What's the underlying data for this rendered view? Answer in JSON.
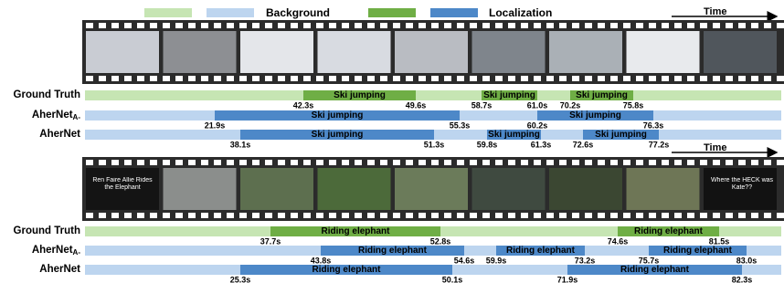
{
  "legend": {
    "background": "Background",
    "localization": "Localization"
  },
  "panels": [
    {
      "time_label": "Time",
      "frame_texts": [],
      "rows": [
        {
          "name": "Ground Truth",
          "sub": null,
          "segments": [
            {
              "label": "Ski jumping",
              "start": "42.3s",
              "end": "49.6s"
            },
            {
              "label": "Ski jumping",
              "start": "58.7s",
              "end": "61.0s"
            },
            {
              "label": "Ski jumping",
              "start": "70.2s",
              "end": "75.8s"
            }
          ]
        },
        {
          "name": "AherNet",
          "sub": "A-",
          "segments": [
            {
              "label": "Ski jumping",
              "start": "21.9s",
              "end": "55.3s"
            },
            {
              "label": "Ski jumping",
              "start": "60.2s",
              "end": "76.3s"
            }
          ]
        },
        {
          "name": "AherNet",
          "sub": null,
          "segments": [
            {
              "label": "Ski jumping",
              "start": "38.1s",
              "end": "51.3s"
            },
            {
              "label": "Ski jumping",
              "start": "59.8s",
              "end": "61.3s"
            },
            {
              "label": "Ski jumping",
              "start": "72.6s",
              "end": "77.2s"
            }
          ]
        }
      ]
    },
    {
      "time_label": "Time",
      "frame_texts": [
        "Ren Faire Allie Rides the Elephant",
        "Where the HECK was Kate??"
      ],
      "rows": [
        {
          "name": "Ground Truth",
          "sub": null,
          "segments": [
            {
              "label": "Riding elephant",
              "start": "37.7s",
              "end": "52.8s"
            },
            {
              "label": "Riding elephant",
              "start": "74.6s",
              "end": "81.5s"
            }
          ]
        },
        {
          "name": "AherNet",
          "sub": "A-",
          "segments": [
            {
              "label": "Riding elephant",
              "start": "43.8s",
              "end": "54.6s"
            },
            {
              "label": "Riding elephant",
              "start": "59.9s",
              "end": "73.2s"
            },
            {
              "label": "Riding elephant",
              "start": "75.7s",
              "end": "83.0s"
            }
          ]
        },
        {
          "name": "AherNet",
          "sub": null,
          "segments": [
            {
              "label": "Riding elephant",
              "start": "25.3s",
              "end": "50.1s"
            },
            {
              "label": "Riding elephant",
              "start": "71.9s",
              "end": "82.3s"
            }
          ]
        }
      ]
    }
  ]
}
